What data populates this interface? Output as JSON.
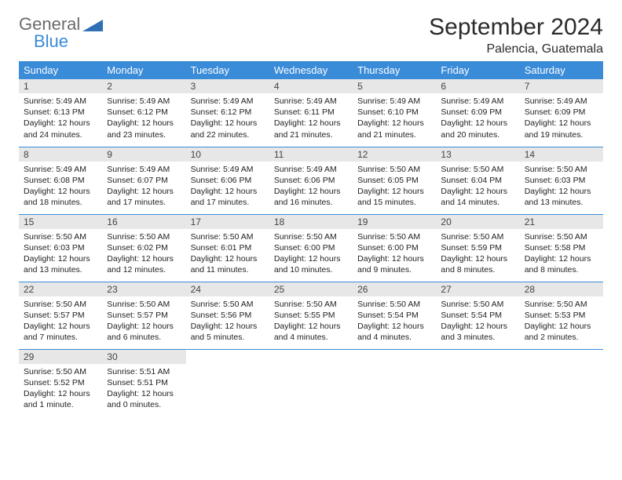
{
  "brand": {
    "general": "General",
    "blue": "Blue",
    "shape_color": "#2f6fb5"
  },
  "title": "September 2024",
  "location": "Palencia, Guatemala",
  "colors": {
    "header_bg": "#3a8bd8",
    "header_fg": "#ffffff",
    "daynum_bg": "#e7e7e7",
    "row_border": "#3a8bd8",
    "text": "#222222",
    "page_bg": "#ffffff"
  },
  "days_of_week": [
    "Sunday",
    "Monday",
    "Tuesday",
    "Wednesday",
    "Thursday",
    "Friday",
    "Saturday"
  ],
  "weeks": [
    [
      {
        "n": "1",
        "sunrise": "Sunrise: 5:49 AM",
        "sunset": "Sunset: 6:13 PM",
        "day1": "Daylight: 12 hours",
        "day2": "and 24 minutes."
      },
      {
        "n": "2",
        "sunrise": "Sunrise: 5:49 AM",
        "sunset": "Sunset: 6:12 PM",
        "day1": "Daylight: 12 hours",
        "day2": "and 23 minutes."
      },
      {
        "n": "3",
        "sunrise": "Sunrise: 5:49 AM",
        "sunset": "Sunset: 6:12 PM",
        "day1": "Daylight: 12 hours",
        "day2": "and 22 minutes."
      },
      {
        "n": "4",
        "sunrise": "Sunrise: 5:49 AM",
        "sunset": "Sunset: 6:11 PM",
        "day1": "Daylight: 12 hours",
        "day2": "and 21 minutes."
      },
      {
        "n": "5",
        "sunrise": "Sunrise: 5:49 AM",
        "sunset": "Sunset: 6:10 PM",
        "day1": "Daylight: 12 hours",
        "day2": "and 21 minutes."
      },
      {
        "n": "6",
        "sunrise": "Sunrise: 5:49 AM",
        "sunset": "Sunset: 6:09 PM",
        "day1": "Daylight: 12 hours",
        "day2": "and 20 minutes."
      },
      {
        "n": "7",
        "sunrise": "Sunrise: 5:49 AM",
        "sunset": "Sunset: 6:09 PM",
        "day1": "Daylight: 12 hours",
        "day2": "and 19 minutes."
      }
    ],
    [
      {
        "n": "8",
        "sunrise": "Sunrise: 5:49 AM",
        "sunset": "Sunset: 6:08 PM",
        "day1": "Daylight: 12 hours",
        "day2": "and 18 minutes."
      },
      {
        "n": "9",
        "sunrise": "Sunrise: 5:49 AM",
        "sunset": "Sunset: 6:07 PM",
        "day1": "Daylight: 12 hours",
        "day2": "and 17 minutes."
      },
      {
        "n": "10",
        "sunrise": "Sunrise: 5:49 AM",
        "sunset": "Sunset: 6:06 PM",
        "day1": "Daylight: 12 hours",
        "day2": "and 17 minutes."
      },
      {
        "n": "11",
        "sunrise": "Sunrise: 5:49 AM",
        "sunset": "Sunset: 6:06 PM",
        "day1": "Daylight: 12 hours",
        "day2": "and 16 minutes."
      },
      {
        "n": "12",
        "sunrise": "Sunrise: 5:50 AM",
        "sunset": "Sunset: 6:05 PM",
        "day1": "Daylight: 12 hours",
        "day2": "and 15 minutes."
      },
      {
        "n": "13",
        "sunrise": "Sunrise: 5:50 AM",
        "sunset": "Sunset: 6:04 PM",
        "day1": "Daylight: 12 hours",
        "day2": "and 14 minutes."
      },
      {
        "n": "14",
        "sunrise": "Sunrise: 5:50 AM",
        "sunset": "Sunset: 6:03 PM",
        "day1": "Daylight: 12 hours",
        "day2": "and 13 minutes."
      }
    ],
    [
      {
        "n": "15",
        "sunrise": "Sunrise: 5:50 AM",
        "sunset": "Sunset: 6:03 PM",
        "day1": "Daylight: 12 hours",
        "day2": "and 13 minutes."
      },
      {
        "n": "16",
        "sunrise": "Sunrise: 5:50 AM",
        "sunset": "Sunset: 6:02 PM",
        "day1": "Daylight: 12 hours",
        "day2": "and 12 minutes."
      },
      {
        "n": "17",
        "sunrise": "Sunrise: 5:50 AM",
        "sunset": "Sunset: 6:01 PM",
        "day1": "Daylight: 12 hours",
        "day2": "and 11 minutes."
      },
      {
        "n": "18",
        "sunrise": "Sunrise: 5:50 AM",
        "sunset": "Sunset: 6:00 PM",
        "day1": "Daylight: 12 hours",
        "day2": "and 10 minutes."
      },
      {
        "n": "19",
        "sunrise": "Sunrise: 5:50 AM",
        "sunset": "Sunset: 6:00 PM",
        "day1": "Daylight: 12 hours",
        "day2": "and 9 minutes."
      },
      {
        "n": "20",
        "sunrise": "Sunrise: 5:50 AM",
        "sunset": "Sunset: 5:59 PM",
        "day1": "Daylight: 12 hours",
        "day2": "and 8 minutes."
      },
      {
        "n": "21",
        "sunrise": "Sunrise: 5:50 AM",
        "sunset": "Sunset: 5:58 PM",
        "day1": "Daylight: 12 hours",
        "day2": "and 8 minutes."
      }
    ],
    [
      {
        "n": "22",
        "sunrise": "Sunrise: 5:50 AM",
        "sunset": "Sunset: 5:57 PM",
        "day1": "Daylight: 12 hours",
        "day2": "and 7 minutes."
      },
      {
        "n": "23",
        "sunrise": "Sunrise: 5:50 AM",
        "sunset": "Sunset: 5:57 PM",
        "day1": "Daylight: 12 hours",
        "day2": "and 6 minutes."
      },
      {
        "n": "24",
        "sunrise": "Sunrise: 5:50 AM",
        "sunset": "Sunset: 5:56 PM",
        "day1": "Daylight: 12 hours",
        "day2": "and 5 minutes."
      },
      {
        "n": "25",
        "sunrise": "Sunrise: 5:50 AM",
        "sunset": "Sunset: 5:55 PM",
        "day1": "Daylight: 12 hours",
        "day2": "and 4 minutes."
      },
      {
        "n": "26",
        "sunrise": "Sunrise: 5:50 AM",
        "sunset": "Sunset: 5:54 PM",
        "day1": "Daylight: 12 hours",
        "day2": "and 4 minutes."
      },
      {
        "n": "27",
        "sunrise": "Sunrise: 5:50 AM",
        "sunset": "Sunset: 5:54 PM",
        "day1": "Daylight: 12 hours",
        "day2": "and 3 minutes."
      },
      {
        "n": "28",
        "sunrise": "Sunrise: 5:50 AM",
        "sunset": "Sunset: 5:53 PM",
        "day1": "Daylight: 12 hours",
        "day2": "and 2 minutes."
      }
    ],
    [
      {
        "n": "29",
        "sunrise": "Sunrise: 5:50 AM",
        "sunset": "Sunset: 5:52 PM",
        "day1": "Daylight: 12 hours",
        "day2": "and 1 minute."
      },
      {
        "n": "30",
        "sunrise": "Sunrise: 5:51 AM",
        "sunset": "Sunset: 5:51 PM",
        "day1": "Daylight: 12 hours",
        "day2": "and 0 minutes."
      },
      {
        "empty": true
      },
      {
        "empty": true
      },
      {
        "empty": true
      },
      {
        "empty": true
      },
      {
        "empty": true
      }
    ]
  ]
}
